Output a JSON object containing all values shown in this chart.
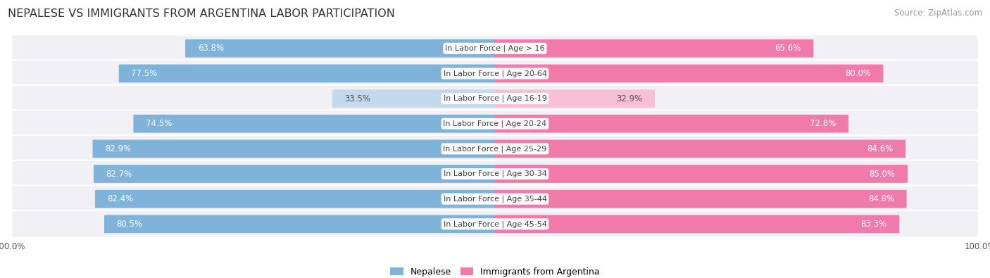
{
  "title": "NEPALESE VS IMMIGRANTS FROM ARGENTINA LABOR PARTICIPATION",
  "source": "Source: ZipAtlas.com",
  "categories": [
    "In Labor Force | Age > 16",
    "In Labor Force | Age 20-64",
    "In Labor Force | Age 16-19",
    "In Labor Force | Age 20-24",
    "In Labor Force | Age 25-29",
    "In Labor Force | Age 30-34",
    "In Labor Force | Age 35-44",
    "In Labor Force | Age 45-54"
  ],
  "nepalese": [
    63.8,
    77.5,
    33.5,
    74.5,
    82.9,
    82.7,
    82.4,
    80.5
  ],
  "argentina": [
    65.6,
    80.0,
    32.9,
    72.8,
    84.6,
    85.0,
    84.8,
    83.3
  ],
  "nepalese_color": "#7fb3d9",
  "nepalese_color_light": "#c5d9ee",
  "argentina_color": "#f07aaa",
  "argentina_color_light": "#f8c0d4",
  "row_bg": "#f0f0f5",
  "label_color_white": "#ffffff",
  "label_color_dark": "#555555",
  "max_value": 100.0,
  "legend_nepalese": "Nepalese",
  "legend_argentina": "Immigrants from Argentina",
  "title_fontsize": 11.5,
  "source_fontsize": 8.5,
  "bar_label_fontsize": 8.5,
  "cat_label_fontsize": 8,
  "legend_fontsize": 9,
  "axis_label_fontsize": 8.5
}
